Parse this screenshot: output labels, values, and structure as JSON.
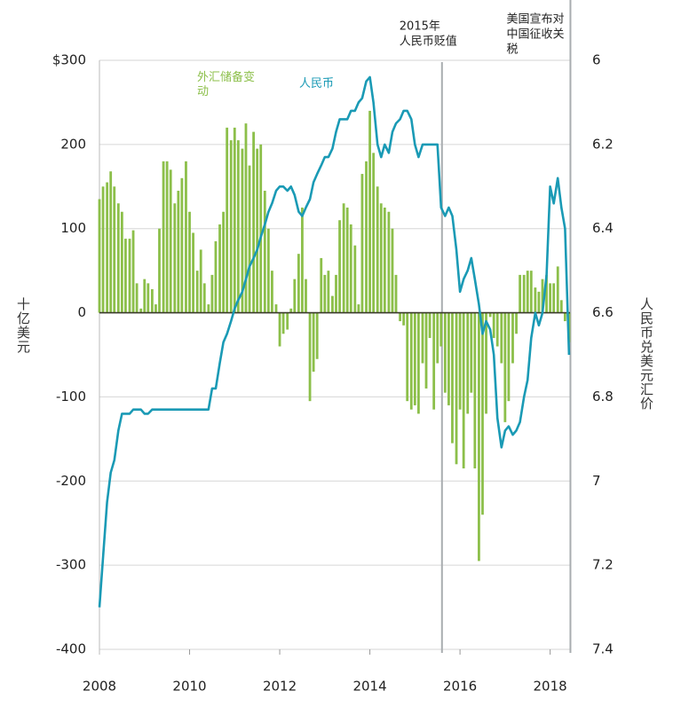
{
  "chart_data": {
    "type": "bar_line",
    "x": [
      2008,
      2008.08,
      2008.17,
      2008.25,
      2008.33,
      2008.42,
      2008.5,
      2008.58,
      2008.67,
      2008.75,
      2008.83,
      2008.92,
      2009,
      2009.08,
      2009.17,
      2009.25,
      2009.33,
      2009.42,
      2009.5,
      2009.58,
      2009.67,
      2009.75,
      2009.83,
      2009.92,
      2010,
      2010.08,
      2010.17,
      2010.25,
      2010.33,
      2010.42,
      2010.5,
      2010.58,
      2010.67,
      2010.75,
      2010.83,
      2010.92,
      2011,
      2011.08,
      2011.17,
      2011.25,
      2011.33,
      2011.42,
      2011.5,
      2011.58,
      2011.67,
      2011.75,
      2011.83,
      2011.92,
      2012,
      2012.08,
      2012.17,
      2012.25,
      2012.33,
      2012.42,
      2012.5,
      2012.58,
      2012.67,
      2012.75,
      2012.83,
      2012.92,
      2013,
      2013.08,
      2013.17,
      2013.25,
      2013.33,
      2013.42,
      2013.5,
      2013.58,
      2013.67,
      2013.75,
      2013.83,
      2013.92,
      2014,
      2014.08,
      2014.17,
      2014.25,
      2014.33,
      2014.42,
      2014.5,
      2014.58,
      2014.67,
      2014.75,
      2014.83,
      2014.92,
      2015,
      2015.08,
      2015.17,
      2015.25,
      2015.33,
      2015.42,
      2015.5,
      2015.58,
      2015.67,
      2015.75,
      2015.83,
      2015.92,
      2016,
      2016.08,
      2016.17,
      2016.25,
      2016.33,
      2016.42,
      2016.5,
      2016.58,
      2016.67,
      2016.75,
      2016.83,
      2016.92,
      2017,
      2017.08,
      2017.17,
      2017.25,
      2017.33,
      2017.42,
      2017.5,
      2017.58,
      2017.67,
      2017.75,
      2017.83,
      2017.92,
      2018,
      2018.08,
      2018.17,
      2018.25,
      2018.33,
      2018.42
    ],
    "series": [
      {
        "name": "外汇储备变动",
        "color": "#8cbf4a",
        "type": "bar",
        "values": [
          135,
          150,
          155,
          168,
          150,
          130,
          120,
          88,
          88,
          98,
          35,
          5,
          40,
          35,
          28,
          10,
          100,
          180,
          180,
          170,
          130,
          145,
          160,
          180,
          120,
          95,
          50,
          75,
          35,
          10,
          45,
          85,
          105,
          120,
          220,
          205,
          220,
          205,
          195,
          225,
          175,
          215,
          195,
          200,
          145,
          100,
          50,
          10,
          -40,
          -25,
          -20,
          5,
          40,
          70,
          125,
          40,
          -105,
          -70,
          -55,
          65,
          45,
          50,
          20,
          45,
          110,
          130,
          125,
          105,
          80,
          10,
          165,
          180,
          240,
          190,
          150,
          130,
          125,
          120,
          100,
          45,
          -10,
          -15,
          -105,
          -115,
          -110,
          -120,
          -60,
          -90,
          -30,
          -115,
          -60,
          -40,
          -95,
          -110,
          -155,
          -180,
          -115,
          -185,
          -120,
          -95,
          -185,
          -295,
          -240,
          -120,
          -5,
          -30,
          -40,
          -60,
          -130,
          -105,
          -60,
          -25,
          45,
          45,
          50,
          50,
          30,
          25,
          40,
          45,
          35,
          35,
          55,
          15,
          -10,
          -35
        ]
      },
      {
        "name": "人民币",
        "color": "#1a9ab5",
        "type": "line",
        "axis": "y2",
        "values": [
          7.3,
          7.18,
          7.05,
          6.98,
          6.95,
          6.88,
          6.84,
          6.84,
          6.84,
          6.83,
          6.83,
          6.83,
          6.84,
          6.84,
          6.83,
          6.83,
          6.83,
          6.83,
          6.83,
          6.83,
          6.83,
          6.83,
          6.83,
          6.83,
          6.83,
          6.83,
          6.83,
          6.83,
          6.83,
          6.83,
          6.78,
          6.78,
          6.72,
          6.67,
          6.65,
          6.62,
          6.59,
          6.57,
          6.55,
          6.52,
          6.49,
          6.47,
          6.45,
          6.42,
          6.39,
          6.36,
          6.34,
          6.31,
          6.3,
          6.3,
          6.31,
          6.3,
          6.32,
          6.36,
          6.37,
          6.35,
          6.33,
          6.29,
          6.27,
          6.25,
          6.23,
          6.23,
          6.21,
          6.17,
          6.14,
          6.14,
          6.14,
          6.12,
          6.12,
          6.1,
          6.09,
          6.05,
          6.04,
          6.1,
          6.2,
          6.23,
          6.2,
          6.22,
          6.17,
          6.15,
          6.14,
          6.12,
          6.12,
          6.14,
          6.2,
          6.23,
          6.2,
          6.2,
          6.2,
          6.2,
          6.2,
          6.35,
          6.37,
          6.35,
          6.37,
          6.45,
          6.55,
          6.52,
          6.5,
          6.47,
          6.52,
          6.58,
          6.65,
          6.62,
          6.64,
          6.7,
          6.85,
          6.92,
          6.88,
          6.87,
          6.89,
          6.88,
          6.86,
          6.8,
          6.76,
          6.66,
          6.6,
          6.63,
          6.6,
          6.51,
          6.3,
          6.34,
          6.28,
          6.35,
          6.4,
          6.7
        ]
      }
    ],
    "xlim": [
      2008,
      2018.5
    ],
    "xticks": [
      2008,
      2010,
      2012,
      2014,
      2016,
      2018
    ],
    "ylim": [
      -400,
      300
    ],
    "yticks": [
      {
        "value": 300,
        "label": "$300"
      },
      200,
      100,
      0,
      -100,
      -200,
      -300,
      -400
    ],
    "y2lim": [
      7.4,
      6
    ],
    "y2ticks": [
      6,
      6.2,
      6.4,
      6.6,
      6.8,
      7,
      7.2,
      7.4
    ],
    "ylabel": "十亿美元",
    "y2label": "人民币兑美元汇价",
    "grid": true,
    "annotations": [
      {
        "x": 2015.6,
        "text": [
          "2015年",
          "人民币贬值"
        ]
      },
      {
        "x": 2018.45,
        "text": [
          "美国宣布对",
          "中国征收关",
          "税"
        ]
      }
    ]
  }
}
